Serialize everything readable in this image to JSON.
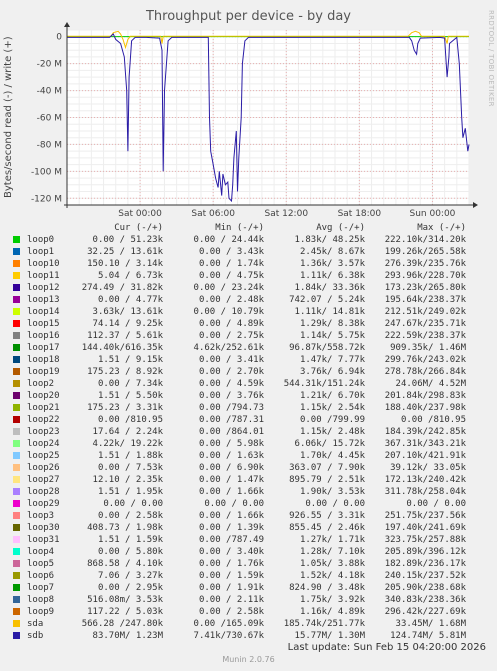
{
  "chart_data": {
    "type": "line",
    "title": "Throughput per device - by day",
    "ylabel": "Bytes/second read (-) / write (+)",
    "ylim": [
      -125,
      5
    ],
    "yticks": [
      {
        "v": 0,
        "label": "0"
      },
      {
        "v": -20,
        "label": "-20 M"
      },
      {
        "v": -40,
        "label": "-40 M"
      },
      {
        "v": -60,
        "label": "-60 M"
      },
      {
        "v": -80,
        "label": "-80 M"
      },
      {
        "v": -100,
        "label": "-100 M"
      },
      {
        "v": -120,
        "label": "-120 M"
      }
    ],
    "xlim": [
      0,
      33
    ],
    "xticks": [
      {
        "v": 6,
        "label": "Sat 00:00"
      },
      {
        "v": 12,
        "label": "Sat 06:00"
      },
      {
        "v": 18,
        "label": "Sat 12:00"
      },
      {
        "v": 24,
        "label": "Sat 18:00"
      },
      {
        "v": 30,
        "label": "Sun 00:00"
      }
    ],
    "grid": true,
    "series": [
      {
        "name": "sdb",
        "color": "#2a1ca6",
        "points": [
          [
            0,
            -0.5
          ],
          [
            3.5,
            -0.5
          ],
          [
            3.8,
            2
          ],
          [
            4.0,
            -2
          ],
          [
            4.4,
            -5
          ],
          [
            4.7,
            -15
          ],
          [
            4.9,
            -40
          ],
          [
            5.0,
            -85
          ],
          [
            5.1,
            -30
          ],
          [
            5.3,
            -3
          ],
          [
            5.6,
            -0.5
          ],
          [
            6.5,
            -0.5
          ],
          [
            7.6,
            -1
          ],
          [
            7.8,
            -10
          ],
          [
            7.9,
            -100
          ],
          [
            8.0,
            -40
          ],
          [
            8.3,
            -3
          ],
          [
            8.6,
            -0.5
          ],
          [
            11.6,
            -0.5
          ],
          [
            11.7,
            -60
          ],
          [
            11.8,
            -85
          ],
          [
            12.0,
            -95
          ],
          [
            12.2,
            -105
          ],
          [
            12.4,
            -112
          ],
          [
            12.5,
            -100
          ],
          [
            12.7,
            -118
          ],
          [
            12.8,
            -102
          ],
          [
            13.0,
            -110
          ],
          [
            13.2,
            -108
          ],
          [
            13.3,
            -120
          ],
          [
            13.5,
            -122
          ],
          [
            13.6,
            -110
          ],
          [
            13.7,
            -90
          ],
          [
            13.9,
            -70
          ],
          [
            14.0,
            -115
          ],
          [
            14.1,
            -90
          ],
          [
            14.3,
            -60
          ],
          [
            14.4,
            -20
          ],
          [
            14.6,
            -3
          ],
          [
            14.9,
            -0.5
          ],
          [
            28.1,
            -0.5
          ],
          [
            28.3,
            -3
          ],
          [
            28.5,
            -10
          ],
          [
            28.7,
            -13
          ],
          [
            28.8,
            -5
          ],
          [
            29.0,
            -1
          ],
          [
            30.6,
            -0.5
          ],
          [
            31.0,
            -1
          ],
          [
            31.2,
            -30
          ],
          [
            31.35,
            -15
          ],
          [
            31.4,
            -5
          ],
          [
            32.0,
            -0.5
          ],
          [
            32.2,
            -20
          ],
          [
            32.4,
            -60
          ],
          [
            32.5,
            -75
          ],
          [
            32.7,
            -68
          ],
          [
            32.9,
            -85
          ],
          [
            33,
            -80
          ]
        ]
      },
      {
        "name": "sda",
        "color": "#f8c000",
        "points": [
          [
            0,
            0.3
          ],
          [
            3.6,
            0.3
          ],
          [
            3.8,
            3
          ],
          [
            4.2,
            4
          ],
          [
            4.4,
            2
          ],
          [
            4.6,
            -2
          ],
          [
            4.8,
            -8
          ],
          [
            5.0,
            -2
          ],
          [
            5.2,
            0.3
          ],
          [
            7.7,
            0.3
          ],
          [
            7.8,
            -5
          ],
          [
            7.9,
            0.3
          ],
          [
            28.0,
            0.3
          ],
          [
            28.3,
            3
          ],
          [
            28.6,
            4
          ],
          [
            28.9,
            3
          ],
          [
            29.1,
            0.3
          ],
          [
            31.0,
            0.3
          ],
          [
            31.2,
            -5
          ],
          [
            31.3,
            0.3
          ],
          [
            33,
            0.3
          ]
        ]
      },
      {
        "name": "loop0",
        "color": "#00cc00",
        "points": [
          [
            0,
            0.1
          ],
          [
            33,
            0.1
          ]
        ]
      }
    ]
  },
  "legend": {
    "header": {
      "cur": "Cur (-/+)",
      "min": "Min (-/+)",
      "avg": "Avg (-/+)",
      "max": "Max (-/+)"
    },
    "rows": [
      {
        "name": "loop0",
        "color": "#00cc00",
        "cur": "0.00 / 51.23k",
        "min": "0.00 / 24.44k",
        "avg": "1.83k/ 48.25k",
        "max": "222.10k/314.20k"
      },
      {
        "name": "loop1",
        "color": "#0066b3",
        "cur": "32.25 / 13.61k",
        "min": "0.00 / 3.43k",
        "avg": "2.45k/ 8.67k",
        "max": "199.26k/265.58k"
      },
      {
        "name": "loop10",
        "color": "#ff8000",
        "cur": "150.10 / 3.14k",
        "min": "0.00 / 1.74k",
        "avg": "1.36k/ 3.57k",
        "max": "276.39k/235.76k"
      },
      {
        "name": "loop11",
        "color": "#ffcc00",
        "cur": "5.04 / 6.73k",
        "min": "0.00 / 4.75k",
        "avg": "1.11k/ 6.38k",
        "max": "293.96k/228.70k"
      },
      {
        "name": "loop12",
        "color": "#330099",
        "cur": "274.49 / 31.82k",
        "min": "0.00 / 23.24k",
        "avg": "1.84k/ 33.36k",
        "max": "173.23k/265.80k"
      },
      {
        "name": "loop13",
        "color": "#990099",
        "cur": "0.00 / 4.77k",
        "min": "0.00 / 2.48k",
        "avg": "742.07 / 5.24k",
        "max": "195.64k/238.37k"
      },
      {
        "name": "loop14",
        "color": "#ccff00",
        "cur": "3.63k/ 13.61k",
        "min": "0.00 / 10.79k",
        "avg": "1.11k/ 14.81k",
        "max": "212.51k/249.02k"
      },
      {
        "name": "loop15",
        "color": "#ff0000",
        "cur": "74.14 / 9.25k",
        "min": "0.00 / 4.89k",
        "avg": "1.29k/ 8.38k",
        "max": "247.67k/235.71k"
      },
      {
        "name": "loop16",
        "color": "#808080",
        "cur": "112.37 / 5.61k",
        "min": "0.00 / 2.75k",
        "avg": "1.14k/ 5.75k",
        "max": "222.59k/238.37k"
      },
      {
        "name": "loop17",
        "color": "#008f00",
        "cur": "144.40k/616.35k",
        "min": "4.62k/252.61k",
        "avg": "96.87k/558.72k",
        "max": "909.35k/ 1.46M"
      },
      {
        "name": "loop18",
        "color": "#00487d",
        "cur": "1.51 / 9.15k",
        "min": "0.00 / 3.41k",
        "avg": "1.47k/ 7.77k",
        "max": "299.76k/243.02k"
      },
      {
        "name": "loop19",
        "color": "#b35a00",
        "cur": "175.23 / 8.92k",
        "min": "0.00 / 2.70k",
        "avg": "3.76k/ 6.94k",
        "max": "278.78k/266.84k"
      },
      {
        "name": "loop2",
        "color": "#b38f00",
        "cur": "0.00 / 7.34k",
        "min": "0.00 / 4.59k",
        "avg": "544.31k/151.24k",
        "max": "24.06M/ 4.52M"
      },
      {
        "name": "loop20",
        "color": "#6b006b",
        "cur": "1.51 / 5.50k",
        "min": "0.00 / 3.76k",
        "avg": "1.21k/ 6.70k",
        "max": "201.84k/298.83k"
      },
      {
        "name": "loop21",
        "color": "#8fb300",
        "cur": "175.23 / 3.31k",
        "min": "0.00 /794.73",
        "avg": "1.15k/ 2.54k",
        "max": "188.40k/237.98k"
      },
      {
        "name": "loop22",
        "color": "#b30000",
        "cur": "0.00 /810.95",
        "min": "0.00 /787.31",
        "avg": "0.00 /799.99",
        "max": "0.00 /810.95"
      },
      {
        "name": "loop23",
        "color": "#bebebe",
        "cur": "17.64 / 2.24k",
        "min": "0.00 /864.01",
        "avg": "1.15k/ 2.48k",
        "max": "184.39k/242.85k"
      },
      {
        "name": "loop24",
        "color": "#80ff80",
        "cur": "4.22k/ 19.22k",
        "min": "0.00 / 5.98k",
        "avg": "6.06k/ 15.72k",
        "max": "367.31k/343.21k"
      },
      {
        "name": "loop25",
        "color": "#80c9ff",
        "cur": "1.51 / 1.88k",
        "min": "0.00 / 1.63k",
        "avg": "1.70k/ 4.45k",
        "max": "207.10k/421.91k"
      },
      {
        "name": "loop26",
        "color": "#ffc080",
        "cur": "0.00 / 7.53k",
        "min": "0.00 / 6.90k",
        "avg": "363.07 / 7.90k",
        "max": "39.12k/ 33.05k"
      },
      {
        "name": "loop27",
        "color": "#ffe680",
        "cur": "12.10 / 2.35k",
        "min": "0.00 / 1.47k",
        "avg": "895.79 / 2.51k",
        "max": "172.13k/240.42k"
      },
      {
        "name": "loop28",
        "color": "#aa80ff",
        "cur": "1.51 / 1.95k",
        "min": "0.00 / 1.66k",
        "avg": "1.90k/ 3.53k",
        "max": "311.78k/258.04k"
      },
      {
        "name": "loop29",
        "color": "#ee00cc",
        "cur": "0.00 / 0.00",
        "min": "0.00 / 0.00",
        "avg": "0.00 / 0.00",
        "max": "0.00 / 0.00"
      },
      {
        "name": "loop3",
        "color": "#ff8080",
        "cur": "0.00 / 2.58k",
        "min": "0.00 / 1.66k",
        "avg": "926.55 / 3.31k",
        "max": "251.75k/237.56k"
      },
      {
        "name": "loop30",
        "color": "#666600",
        "cur": "408.73 / 1.98k",
        "min": "0.00 / 1.39k",
        "avg": "855.45 / 2.46k",
        "max": "197.40k/241.69k"
      },
      {
        "name": "loop31",
        "color": "#ffbfff",
        "cur": "1.51 / 1.59k",
        "min": "0.00 /787.49",
        "avg": "1.27k/ 1.71k",
        "max": "323.75k/257.88k"
      },
      {
        "name": "loop4",
        "color": "#00ffcc",
        "cur": "0.00 / 5.80k",
        "min": "0.00 / 3.40k",
        "avg": "1.28k/ 7.10k",
        "max": "205.89k/396.12k"
      },
      {
        "name": "loop5",
        "color": "#cc6699",
        "cur": "868.58 / 4.10k",
        "min": "0.00 / 1.76k",
        "avg": "1.05k/ 3.88k",
        "max": "182.89k/236.17k"
      },
      {
        "name": "loop6",
        "color": "#999900",
        "cur": "7.06 / 3.27k",
        "min": "0.00 / 1.59k",
        "avg": "1.52k/ 4.18k",
        "max": "240.15k/237.52k"
      },
      {
        "name": "loop7",
        "color": "#009900",
        "cur": "0.00 / 2.95k",
        "min": "0.00 / 1.91k",
        "avg": "824.90 / 3.48k",
        "max": "205.90k/238.68k"
      },
      {
        "name": "loop8",
        "color": "#336699",
        "cur": "516.08m/ 3.53k",
        "min": "0.00 / 2.11k",
        "avg": "1.75k/ 3.92k",
        "max": "340.83k/238.36k"
      },
      {
        "name": "loop9",
        "color": "#cc6600",
        "cur": "117.22 / 5.03k",
        "min": "0.00 / 2.58k",
        "avg": "1.16k/ 4.89k",
        "max": "296.42k/227.69k"
      },
      {
        "name": "sda",
        "color": "#f8c000",
        "cur": "566.28 /247.80k",
        "min": "0.00 /165.09k",
        "avg": "185.74k/251.77k",
        "max": "33.45M/ 1.68M"
      },
      {
        "name": "sdb",
        "color": "#2a1ca6",
        "cur": "83.70M/ 1.23M",
        "min": "7.41k/730.67k",
        "avg": "15.77M/ 1.30M",
        "max": "124.74M/ 5.81M"
      }
    ]
  },
  "footer": {
    "last_update": "Last update: Sun Feb 15 04:20:00 2026",
    "version": "Munin 2.0.76"
  },
  "side_credit": "RRDTOOL / TOBI OETIKER"
}
